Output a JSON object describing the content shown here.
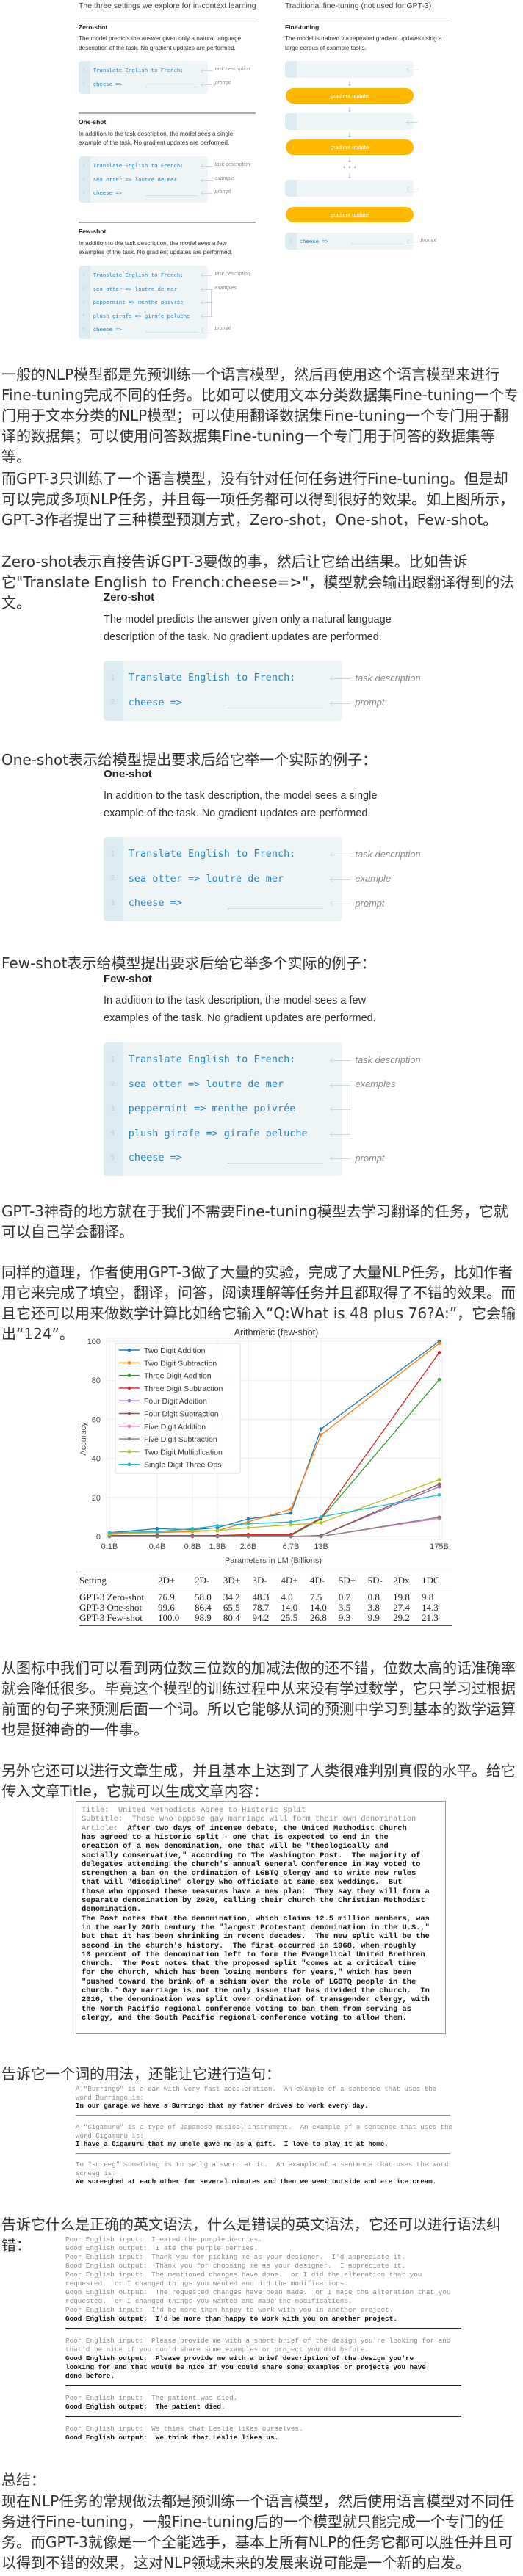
{
  "figure_overview": {
    "left_title": "The three settings we explore for in-context learning",
    "right_title": "Traditional fine-tuning (not used for GPT-3)",
    "settings": [
      {
        "heading": "Zero-shot",
        "description_lines": [
          "The model predicts the answer given only a natural language",
          "description of the task. No gradient updates are performed."
        ],
        "lines": [
          {
            "num": "1",
            "code": "Translate English to French:",
            "label": "task description"
          },
          {
            "num": "2",
            "code": "cheese =>",
            "label": "prompt"
          }
        ]
      },
      {
        "heading": "One-shot",
        "description_lines": [
          "In addition to the task description, the model sees a single",
          "example of the task. No gradient updates are performed."
        ],
        "lines": [
          {
            "num": "1",
            "code": "Translate English to French:",
            "label": "task description"
          },
          {
            "num": "2",
            "code": "sea otter => loutre de mer",
            "label": "example"
          },
          {
            "num": "3",
            "code": "cheese =>",
            "label": "prompt"
          }
        ]
      },
      {
        "heading": "Few-shot",
        "description_lines": [
          "In addition to the task description, the model sees a few",
          "examples of the task. No gradient updates are performed."
        ],
        "lines": [
          {
            "num": "1",
            "code": "Translate English to French:",
            "label": "task description"
          },
          {
            "num": "2",
            "code": "sea otter => loutre de mer",
            "label": "examples"
          },
          {
            "num": "3",
            "code": "peppermint => menthe poivrée",
            "label": ""
          },
          {
            "num": "4",
            "code": "plush girafe => girafe peluche",
            "label": ""
          },
          {
            "num": "5",
            "code": "cheese =>",
            "label": "prompt"
          }
        ]
      }
    ],
    "fine_tuning": {
      "heading": "Fine-tuning",
      "description_lines": [
        "The model is trained via repeated gradient updates using a",
        "large corpus of example tasks."
      ],
      "examples": [
        {
          "num": "1",
          "code": "sea otter => loutre de mer",
          "label": "example #1"
        },
        {
          "num": "1",
          "code": "peppermint => menthe poivrée",
          "label": "example #2"
        },
        {
          "num": "1",
          "code": "plush giraffe => girafe peluche",
          "label": "example #N"
        }
      ],
      "gradient_label": "gradient update",
      "prompt": {
        "num": "1",
        "code": "cheese =>",
        "label": "prompt"
      }
    }
  },
  "paragraphs": {
    "p1": "一般的NLP模型都是先预训练一个语言模型，然后再使用这个语言模型来进行Fine-tuning完成不同的任务。比如可以使用文本分类数据集Fine-tuning一个专门用于文本分类的NLP模型；可以使用翻译数据集Fine-tuning一个专门用于翻译的数据集；可以使用问答数据集Fine-tuning一个专门用于问答的数据集等等。",
    "p2": "而GPT-3只训练了一个语言模型，没有针对任何任务进行Fine-tuning。但是却可以完成多项NLP任务，并且每一项任务都可以得到很好的效果。如上图所示，GPT-3作者提出了三种模型预测方式，Zero-shot，One-shot，Few-shot。",
    "p3": "Zero-shot表示直接告诉GPT-3要做的事，然后让它给出结果。比如告诉它\"Translate English to French:cheese=>\"，模型就会输出跟翻译得到的法文。",
    "p4": "One-shot表示给模型提出要求后给它举一个实际的例子：",
    "p5": "Few-shot表示给模型提出要求后给它举多个实际的例子：",
    "p6": "GPT-3神奇的地方就在于我们不需要Fine-tuning模型去学习翻译的任务，它就可以自己学会翻译。",
    "p7": "同样的道理，作者使用GPT-3做了大量的实验，完成了大量NLP任务，比如作者用它来完成了填空，翻译，问答，阅读理解等任务并且都取得了不错的效果。而且它还可以用来做数学计算比如给它输入“Q:What is 48 plus 76?A:”，它会输出“124”。",
    "p8": "从图标中我们可以看到两位数三位数的加减法做的还不错，位数太高的话准确率就会降低很多。毕竟这个模型的训练过程中从来没有学过数学，它只学习过根据前面的句子来预测后面一个词。所以它能够从词的预测中学习到基本的数学运算也是挺神奇的一件事。",
    "p9": "另外它还可以进行文章生成，并且基本上达到了人类很难判别真假的水平。给它传入文章Title，它就可以生成文章内容：",
    "p10": "告诉它一个词的用法，还能让它进行造句：",
    "p11": "告诉它什么是正确的英文语法，什么是错误的英文语法，它还可以进行语法纠错：",
    "summary_heading": "总结：",
    "summary": "现在NLP任务的常规做法都是预训练一个语言模型，然后使用语言模型对不同任务进行Fine-tuning，一般Fine-tuning后的一个模型就只能完成一个专门的任务。而GPT-3就像是一个全能选手，基本上所有NLP的任务它都可以胜任并且可以得到不错的效果，这对NLP领域未来的发展来说可能是一个新的启发。"
  },
  "chart_data": {
    "type": "line",
    "title": "Arithmetic (few-shot)",
    "xlabel": "Parameters in LM (Billions)",
    "ylabel": "Accuracy",
    "x": [
      "0.1B",
      "0.4B",
      "0.8B",
      "1.3B",
      "2.6B",
      "6.7B",
      "13B",
      "175B"
    ],
    "ylim": [
      0,
      100
    ],
    "yticks": [
      "0",
      "20",
      "40",
      "60",
      "80",
      "100"
    ],
    "grid": true,
    "legend_position": "top-left",
    "series": [
      {
        "name": "Two Digit Addition",
        "color": "#1f77b4",
        "values": [
          2,
          4,
          3.5,
          4.5,
          9,
          12,
          55,
          100
        ]
      },
      {
        "name": "Two Digit Subtraction",
        "color": "#ff7f0e",
        "values": [
          1.5,
          2,
          2.5,
          3,
          7.5,
          14,
          52,
          98.9
        ]
      },
      {
        "name": "Three Digit Addition",
        "color": "#2ca02c",
        "values": [
          0.5,
          0.5,
          0.5,
          0.5,
          0.5,
          0.5,
          9,
          80.4
        ]
      },
      {
        "name": "Three Digit Subtraction",
        "color": "#d62728",
        "values": [
          0.5,
          0.5,
          0.5,
          0.5,
          1,
          1,
          9.5,
          94.2
        ]
      },
      {
        "name": "Four Digit Addition",
        "color": "#9467bd",
        "values": [
          0,
          0,
          0,
          0,
          0,
          0,
          0.5,
          25.5
        ]
      },
      {
        "name": "Four Digit Subtraction",
        "color": "#8c564b",
        "values": [
          0,
          0,
          0,
          0,
          0,
          0,
          0.5,
          26.8
        ]
      },
      {
        "name": "Five Digit Addition",
        "color": "#e377c2",
        "values": [
          0,
          0,
          0,
          0,
          0,
          0,
          0,
          9.3
        ]
      },
      {
        "name": "Five Digit Subtraction",
        "color": "#7f7f7f",
        "values": [
          0,
          0,
          0,
          0,
          0,
          0,
          0,
          9.9
        ]
      },
      {
        "name": "Two Digit Multiplication",
        "color": "#bcbd22",
        "values": [
          1,
          2.5,
          3,
          3,
          4.5,
          6,
          7,
          29.2
        ]
      },
      {
        "name": "Single Digit Three Ops",
        "color": "#17becf",
        "values": [
          2,
          2.5,
          4,
          5.5,
          6.5,
          7.5,
          10,
          21.3
        ]
      }
    ]
  },
  "results_table": {
    "headers": [
      "Setting",
      "2D+",
      "2D-",
      "3D+",
      "3D-",
      "4D+",
      "4D-",
      "5D+",
      "5D-",
      "2Dx",
      "1DC"
    ],
    "rows": [
      [
        "GPT-3 Zero-shot",
        "76.9",
        "58.0",
        "34.2",
        "48.3",
        "4.0",
        "7.5",
        "0.7",
        "0.8",
        "19.8",
        "9.8"
      ],
      [
        "GPT-3 One-shot",
        "99.6",
        "86.4",
        "65.5",
        "78.7",
        "14.0",
        "14.0",
        "3.5",
        "3.8",
        "27.4",
        "14.3"
      ],
      [
        "GPT-3 Few-shot",
        "100.0",
        "98.9",
        "80.4",
        "94.2",
        "25.5",
        "26.8",
        "9.3",
        "9.9",
        "29.2",
        "21.3"
      ]
    ]
  },
  "article": {
    "title_label": "Title:",
    "title": "United Methodists Agree to Historic Split",
    "subtitle_label": "Subtitle:",
    "subtitle": "Those who oppose gay marriage will form their own denomination",
    "article_label": "Article:",
    "lines": [
      "After two days of intense debate, the United Methodist Church",
      "has agreed to a historic split - one that is expected to end in the",
      "creation of a new denomination, one that will be \"theologically and",
      "socially conservative,\" according to The Washington Post.  The majority of",
      "delegates attending the church's annual General Conference in May voted to",
      "strengthen a ban on the ordination of LGBTQ clergy and to write new rules",
      "that will \"discipline\" clergy who officiate at same-sex weddings.  But",
      "those who opposed these measures have a new plan:  They say they will form a",
      "separate denomination by 2020, calling their church the Christian Methodist",
      "denomination.",
      "The Post notes that the denomination, which claims 12.5 million members, was",
      "in the early 20th century the \"largest Protestant denomination in the U.S.,\"",
      "but that it has been shrinking in recent decades.  The new split will be the",
      "second in the church's history.  The first occurred in 1968, when roughly",
      "10 percent of the denomination left to form the Evangelical United Brethren",
      "Church.  The Post notes that the proposed split \"comes at a critical time",
      "for the church, which has been losing members for years,\" which has been",
      "\"pushed toward the brink of a schism over the role of LGBTQ people in the",
      "church.\" Gay marriage is not the only issue that has divided the church.  In",
      "2016, the denomination was split over ordination of transgender clergy, with",
      "the North Pacific regional conference voting to ban them from serving as",
      "clergy, and the South Pacific regional conference voting to allow them."
    ]
  },
  "word_usage": [
    {
      "prompt": [
        "A \"Burringo\" is a car with very fast acceleration.  An example of a sentence that uses the",
        "word Burringo is:"
      ],
      "output": "In our garage we have a Burringo that my father drives to work every day."
    },
    {
      "prompt": [
        "A \"Gigamuru\" is a type of Japanese musical instrument.  An example of a sentence that uses the",
        "word Gigamuru is:"
      ],
      "output": "I have a Gigamuru that my uncle gave me as a gift.  I love to play it at home."
    },
    {
      "prompt": [
        "To \"screeg\" something is to swing a sword at it.  An example of a sentence that uses the word",
        "screeg is:"
      ],
      "output": "We screeghed at each other for several minutes and then we went outside and ate ice cream."
    }
  ],
  "grammar": [
    [
      {
        "text": "Poor English input:  I eated the purple berries.",
        "bold": false
      },
      {
        "text": "Good English output:  I ate the purple berries.",
        "bold": false
      },
      {
        "text": "Poor English input:  Thank you for picking me as your designer.  I'd appreciate it.",
        "bold": false
      },
      {
        "text": "Good English output:  Thank you for choosing me as your designer.  I appreciate it.",
        "bold": false
      },
      {
        "text": "Poor English input:  The mentioned changes have done.  or I did the alteration that you",
        "bold": false
      },
      {
        "text": "requested.  or I changed things you wanted and did the modifications.",
        "bold": false
      },
      {
        "text": "Good English output:  The requested changes have been made.  or I made the alteration that you",
        "bold": false
      },
      {
        "text": "requested.  or I changed things you wanted and made the modifications.",
        "bold": false
      },
      {
        "text": "Poor English input:  I'd be more than happy to work with you in another project.",
        "bold": false
      },
      {
        "text": "Good English output:  I'd be more than happy to work with you on another project.",
        "bold": true
      }
    ],
    [
      {
        "text": "Poor English input:  Please provide me with a short brief of the design you're looking for and",
        "bold": false
      },
      {
        "text": "that'd be nice if you could share some examples or project you did before.",
        "bold": false
      },
      {
        "text": "Good English output:  Please provide me with a brief description of the design you're",
        "bold": true
      },
      {
        "text": "looking for and that would be nice if you could share some examples or projects you have",
        "bold": true
      },
      {
        "text": "done before.",
        "bold": true
      }
    ],
    [
      {
        "text": "Poor English input:  The patient was died.",
        "bold": false
      },
      {
        "text": "Good English output:  The patient died.",
        "bold": true
      }
    ],
    [
      {
        "text": "Poor English input:  We think that Leslie likes ourselves.",
        "bold": false
      },
      {
        "text": "Good English output:  We think that Leslie likes us.",
        "bold": true
      }
    ]
  ]
}
